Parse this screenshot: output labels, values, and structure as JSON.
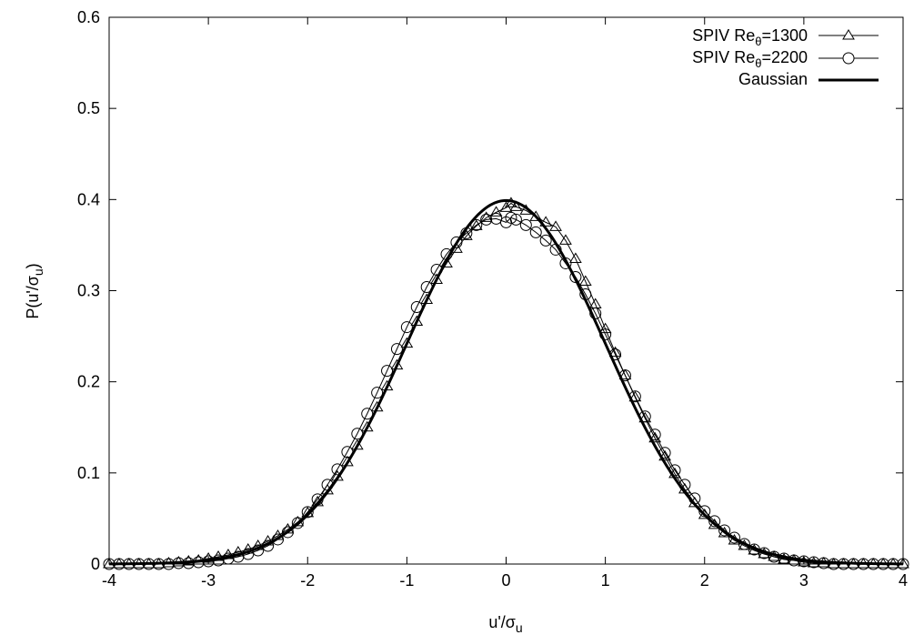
{
  "chart_data": {
    "type": "line",
    "title": "",
    "xlabel": "u'/σ",
    "xlabel_sub": "u",
    "ylabel": "P(u'/σ",
    "ylabel_sub": "u",
    "ylabel_close": ")",
    "xlim": [
      -4,
      4
    ],
    "ylim": [
      0,
      0.6
    ],
    "xticks": [
      -4,
      -3,
      -2,
      -1,
      0,
      1,
      2,
      3,
      4
    ],
    "xtick_labels": [
      "-4",
      "-3",
      "-2",
      "-1",
      "0",
      "1",
      "2",
      "3",
      "4"
    ],
    "yticks": [
      0,
      0.1,
      0.2,
      0.3,
      0.4,
      0.5,
      0.6
    ],
    "ytick_labels": [
      "0",
      "0.1",
      "0.2",
      "0.3",
      "0.4",
      "0.5",
      "0.6"
    ],
    "grid": false,
    "legend_position": "top-right",
    "series": [
      {
        "name": "SPIV Re",
        "name_sub": "θ",
        "name_tail": "=1300",
        "marker": "triangle",
        "color": "#000000",
        "points": [
          [
            -4.0,
            0.0
          ],
          [
            -3.9,
            0.0
          ],
          [
            -3.8,
            0.0
          ],
          [
            -3.7,
            0.0
          ],
          [
            -3.6,
            0.0
          ],
          [
            -3.5,
            0.0
          ],
          [
            -3.4,
            0.001
          ],
          [
            -3.3,
            0.002
          ],
          [
            -3.2,
            0.003
          ],
          [
            -3.1,
            0.004
          ],
          [
            -3.0,
            0.006
          ],
          [
            -2.9,
            0.008
          ],
          [
            -2.8,
            0.01
          ],
          [
            -2.7,
            0.013
          ],
          [
            -2.6,
            0.016
          ],
          [
            -2.5,
            0.02
          ],
          [
            -2.4,
            0.025
          ],
          [
            -2.3,
            0.031
          ],
          [
            -2.2,
            0.038
          ],
          [
            -2.1,
            0.046
          ],
          [
            -2.0,
            0.056
          ],
          [
            -1.9,
            0.068
          ],
          [
            -1.8,
            0.081
          ],
          [
            -1.7,
            0.096
          ],
          [
            -1.6,
            0.112
          ],
          [
            -1.5,
            0.13
          ],
          [
            -1.4,
            0.15
          ],
          [
            -1.3,
            0.172
          ],
          [
            -1.2,
            0.195
          ],
          [
            -1.1,
            0.218
          ],
          [
            -1.0,
            0.242
          ],
          [
            -0.9,
            0.266
          ],
          [
            -0.8,
            0.29
          ],
          [
            -0.7,
            0.312
          ],
          [
            -0.6,
            0.33
          ],
          [
            -0.5,
            0.346
          ],
          [
            -0.4,
            0.36
          ],
          [
            -0.3,
            0.371
          ],
          [
            -0.2,
            0.38
          ],
          [
            -0.1,
            0.386
          ],
          [
            0.0,
            0.391
          ],
          [
            0.05,
            0.396
          ],
          [
            0.1,
            0.392
          ],
          [
            0.2,
            0.388
          ],
          [
            0.3,
            0.381
          ],
          [
            0.4,
            0.375
          ],
          [
            0.5,
            0.37
          ],
          [
            0.6,
            0.355
          ],
          [
            0.7,
            0.335
          ],
          [
            0.8,
            0.31
          ],
          [
            0.9,
            0.285
          ],
          [
            1.0,
            0.258
          ],
          [
            1.1,
            0.232
          ],
          [
            1.2,
            0.207
          ],
          [
            1.3,
            0.183
          ],
          [
            1.4,
            0.16
          ],
          [
            1.5,
            0.138
          ],
          [
            1.6,
            0.118
          ],
          [
            1.7,
            0.099
          ],
          [
            1.8,
            0.082
          ],
          [
            1.9,
            0.067
          ],
          [
            2.0,
            0.054
          ],
          [
            2.1,
            0.043
          ],
          [
            2.2,
            0.034
          ],
          [
            2.3,
            0.026
          ],
          [
            2.4,
            0.02
          ],
          [
            2.5,
            0.015
          ],
          [
            2.6,
            0.011
          ],
          [
            2.7,
            0.008
          ],
          [
            2.8,
            0.005
          ],
          [
            2.9,
            0.004
          ],
          [
            3.0,
            0.002
          ],
          [
            3.1,
            0.001
          ],
          [
            3.2,
            0.001
          ],
          [
            3.3,
            0.0
          ],
          [
            3.4,
            0.0
          ],
          [
            3.5,
            0.0
          ],
          [
            3.6,
            0.0
          ],
          [
            3.7,
            0.0
          ],
          [
            3.8,
            0.0
          ],
          [
            3.9,
            0.0
          ],
          [
            4.0,
            0.0
          ]
        ]
      },
      {
        "name": "SPIV Re",
        "name_sub": "θ",
        "name_tail": "=2200",
        "marker": "circle",
        "color": "#000000",
        "points": [
          [
            -4.0,
            0.0
          ],
          [
            -3.9,
            0.0
          ],
          [
            -3.8,
            0.0
          ],
          [
            -3.7,
            0.0
          ],
          [
            -3.6,
            0.0
          ],
          [
            -3.5,
            0.0
          ],
          [
            -3.4,
            0.0
          ],
          [
            -3.3,
            0.001
          ],
          [
            -3.2,
            0.001
          ],
          [
            -3.1,
            0.002
          ],
          [
            -3.0,
            0.003
          ],
          [
            -2.9,
            0.004
          ],
          [
            -2.8,
            0.006
          ],
          [
            -2.7,
            0.008
          ],
          [
            -2.6,
            0.011
          ],
          [
            -2.5,
            0.015
          ],
          [
            -2.4,
            0.02
          ],
          [
            -2.3,
            0.027
          ],
          [
            -2.2,
            0.035
          ],
          [
            -2.1,
            0.045
          ],
          [
            -2.0,
            0.057
          ],
          [
            -1.9,
            0.071
          ],
          [
            -1.8,
            0.087
          ],
          [
            -1.7,
            0.104
          ],
          [
            -1.6,
            0.123
          ],
          [
            -1.5,
            0.143
          ],
          [
            -1.4,
            0.165
          ],
          [
            -1.3,
            0.188
          ],
          [
            -1.2,
            0.212
          ],
          [
            -1.1,
            0.236
          ],
          [
            -1.0,
            0.26
          ],
          [
            -0.9,
            0.282
          ],
          [
            -0.8,
            0.304
          ],
          [
            -0.7,
            0.323
          ],
          [
            -0.6,
            0.34
          ],
          [
            -0.5,
            0.353
          ],
          [
            -0.4,
            0.363
          ],
          [
            -0.3,
            0.372
          ],
          [
            -0.2,
            0.378
          ],
          [
            -0.1,
            0.379
          ],
          [
            0.0,
            0.375
          ],
          [
            0.05,
            0.38
          ],
          [
            0.1,
            0.378
          ],
          [
            0.2,
            0.372
          ],
          [
            0.3,
            0.364
          ],
          [
            0.4,
            0.355
          ],
          [
            0.5,
            0.345
          ],
          [
            0.6,
            0.33
          ],
          [
            0.7,
            0.315
          ],
          [
            0.8,
            0.296
          ],
          [
            0.9,
            0.275
          ],
          [
            1.0,
            0.252
          ],
          [
            1.1,
            0.23
          ],
          [
            1.2,
            0.207
          ],
          [
            1.3,
            0.184
          ],
          [
            1.4,
            0.162
          ],
          [
            1.5,
            0.142
          ],
          [
            1.6,
            0.122
          ],
          [
            1.7,
            0.103
          ],
          [
            1.8,
            0.087
          ],
          [
            1.9,
            0.072
          ],
          [
            2.0,
            0.058
          ],
          [
            2.1,
            0.047
          ],
          [
            2.2,
            0.037
          ],
          [
            2.3,
            0.029
          ],
          [
            2.4,
            0.022
          ],
          [
            2.5,
            0.016
          ],
          [
            2.6,
            0.012
          ],
          [
            2.7,
            0.008
          ],
          [
            2.8,
            0.006
          ],
          [
            2.9,
            0.004
          ],
          [
            3.0,
            0.003
          ],
          [
            3.1,
            0.002
          ],
          [
            3.2,
            0.001
          ],
          [
            3.3,
            0.0
          ],
          [
            3.4,
            0.0
          ],
          [
            3.5,
            0.0
          ],
          [
            3.6,
            0.0
          ],
          [
            3.7,
            0.0
          ],
          [
            3.8,
            0.0
          ],
          [
            3.9,
            0.0
          ],
          [
            4.0,
            0.0
          ]
        ]
      },
      {
        "name": "Gaussian",
        "marker": "none",
        "color": "#000000",
        "function": "gaussian",
        "mean": 0,
        "std": 1
      }
    ]
  }
}
